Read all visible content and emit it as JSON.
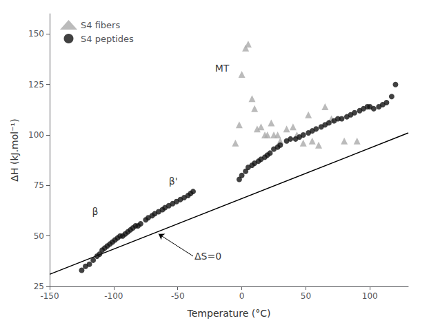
{
  "chart_data": {
    "type": "scatter",
    "xlabel": "Temperature (°C)",
    "ylabel": "ΔH (kJ.mol⁻¹)",
    "xlim": [
      -150,
      130
    ],
    "ylim": [
      25,
      160
    ],
    "xticks": [
      -150,
      -100,
      -50,
      0,
      50,
      100
    ],
    "yticks": [
      25,
      50,
      75,
      100,
      125,
      150
    ],
    "grid": false,
    "legend": "upper left",
    "series": [
      {
        "type": "line",
        "color": "#000000",
        "x": [
          -150,
          130
        ],
        "values": [
          31,
          101
        ]
      },
      {
        "name": "S4 fibers",
        "type": "scatter",
        "marker": "triangle",
        "color": "#aaaaaa",
        "x": [
          -5,
          -2,
          0,
          3,
          5,
          8,
          10,
          12,
          15,
          18,
          20,
          23,
          25,
          28,
          30,
          35,
          40,
          43,
          48,
          52,
          55,
          60,
          65,
          70,
          80,
          90
        ],
        "values": [
          96,
          105,
          130,
          143,
          145,
          118,
          113,
          103,
          104,
          100,
          100,
          106,
          100,
          100,
          97,
          103,
          104,
          100,
          96,
          110,
          97,
          95,
          114,
          108,
          97,
          97
        ]
      },
      {
        "name": "S4 peptides",
        "type": "scatter",
        "marker": "circle",
        "color": "#111111",
        "x": [
          -125,
          -122,
          -119,
          -116,
          -113,
          -111,
          -109,
          -107,
          -105,
          -103,
          -101,
          -99,
          -97,
          -95,
          -93,
          -91,
          -89,
          -87,
          -85,
          -83,
          -81,
          -79,
          -75,
          -73,
          -70,
          -68,
          -65,
          -62,
          -60,
          -57,
          -54,
          -51,
          -48,
          -45,
          -42,
          -40,
          -38,
          -2,
          0,
          3,
          5,
          8,
          10,
          13,
          15,
          18,
          20,
          22,
          25,
          28,
          30,
          35,
          38,
          42,
          45,
          48,
          52,
          55,
          58,
          62,
          65,
          68,
          72,
          75,
          78,
          82,
          85,
          88,
          92,
          95,
          98,
          100,
          103,
          107,
          110,
          113,
          117,
          120
        ],
        "values": [
          33,
          35,
          36,
          38,
          40,
          41,
          43,
          44,
          45,
          46,
          47,
          48,
          49,
          50,
          50,
          51,
          52,
          53,
          54,
          55,
          55,
          56,
          58,
          59,
          60,
          61,
          62,
          63,
          64,
          65,
          66,
          67,
          68,
          69,
          70,
          71,
          72,
          78,
          80,
          82,
          84,
          85,
          86,
          87,
          88,
          89,
          90,
          91,
          93,
          94,
          95,
          97,
          98,
          98,
          99,
          100,
          101,
          102,
          103,
          104,
          105,
          106,
          107,
          108,
          108,
          109,
          110,
          111,
          112,
          113,
          114,
          114,
          113,
          114,
          115,
          116,
          119,
          125
        ]
      }
    ],
    "annotations": [
      {
        "text": "β",
        "x": -118,
        "y": 62
      },
      {
        "text": "β'",
        "x": -58,
        "y": 77
      },
      {
        "text": "MT",
        "x": -22,
        "y": 133
      },
      {
        "text": "ΔS=0",
        "x": -38,
        "y": 40,
        "arrow_x": -65,
        "arrow_y": 51
      }
    ]
  }
}
